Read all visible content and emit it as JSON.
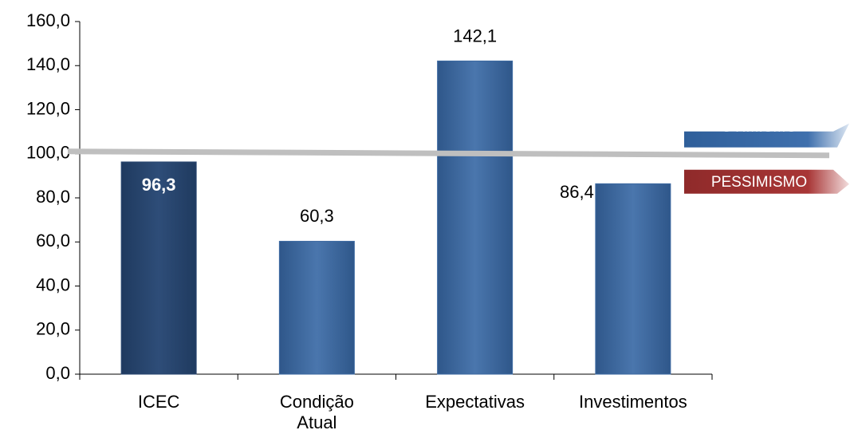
{
  "chart_data": {
    "type": "bar",
    "categories": [
      "ICEC",
      "Condição\nAtual",
      "Expectativas",
      "Investimentos"
    ],
    "values": [
      96.3,
      60.3,
      142.1,
      86.4
    ],
    "value_labels": [
      "96,3",
      "60,3",
      "142,1",
      "86,4"
    ],
    "colors": [
      "#2a4770",
      "#3d6aa2",
      "#3d6aa2",
      "#3d6aa2"
    ],
    "ylim": [
      0,
      160
    ],
    "yticks": [
      {
        "value": 0,
        "label": "0,0"
      },
      {
        "value": 20,
        "label": "20,0"
      },
      {
        "value": 40,
        "label": "40,0"
      },
      {
        "value": 60,
        "label": "60,0"
      },
      {
        "value": 80,
        "label": "80,0"
      },
      {
        "value": 100,
        "label": "100,0"
      },
      {
        "value": 120,
        "label": "120,0"
      },
      {
        "value": 140,
        "label": "140,0"
      },
      {
        "value": 160,
        "label": "160,0"
      }
    ],
    "reference_line": {
      "value": 100,
      "color": "#bfbfbf",
      "label_above": "OTIMISMO",
      "label_below": "PESSIMISMO"
    }
  }
}
